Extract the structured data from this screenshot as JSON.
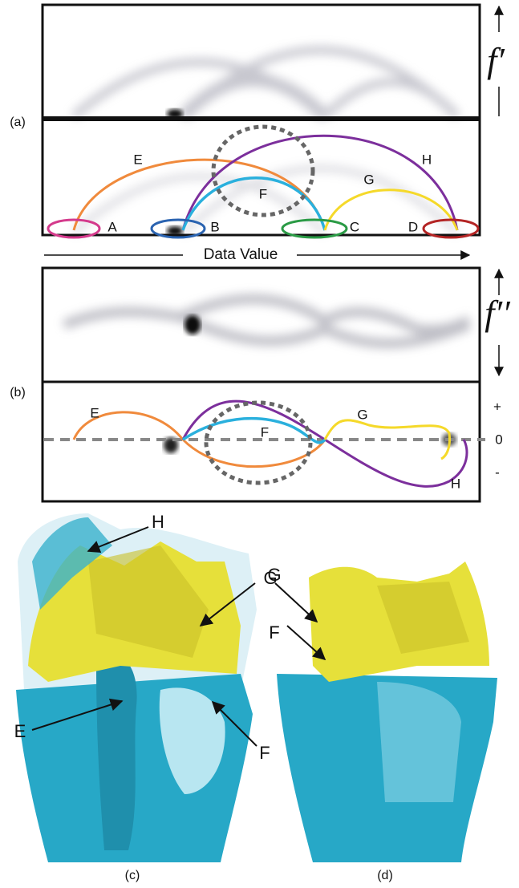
{
  "panel_a": {
    "label": "(a)",
    "axis_label": "f′",
    "arc_labels": [
      "E",
      "F",
      "G",
      "H"
    ],
    "point_labels": [
      "A",
      "B",
      "C",
      "D"
    ],
    "x_axis_label": "Data Value"
  },
  "panel_b": {
    "label": "(b)",
    "axis_label": "f′′",
    "curve_labels": [
      "E",
      "F",
      "G",
      "H"
    ],
    "sign_labels": [
      "+",
      "0",
      "-"
    ]
  },
  "panel_c": {
    "label": "(c)",
    "annotations": [
      "H",
      "G",
      "E",
      "F"
    ]
  },
  "panel_d": {
    "label": "(d)",
    "annotations": [
      "G",
      "F"
    ]
  }
}
